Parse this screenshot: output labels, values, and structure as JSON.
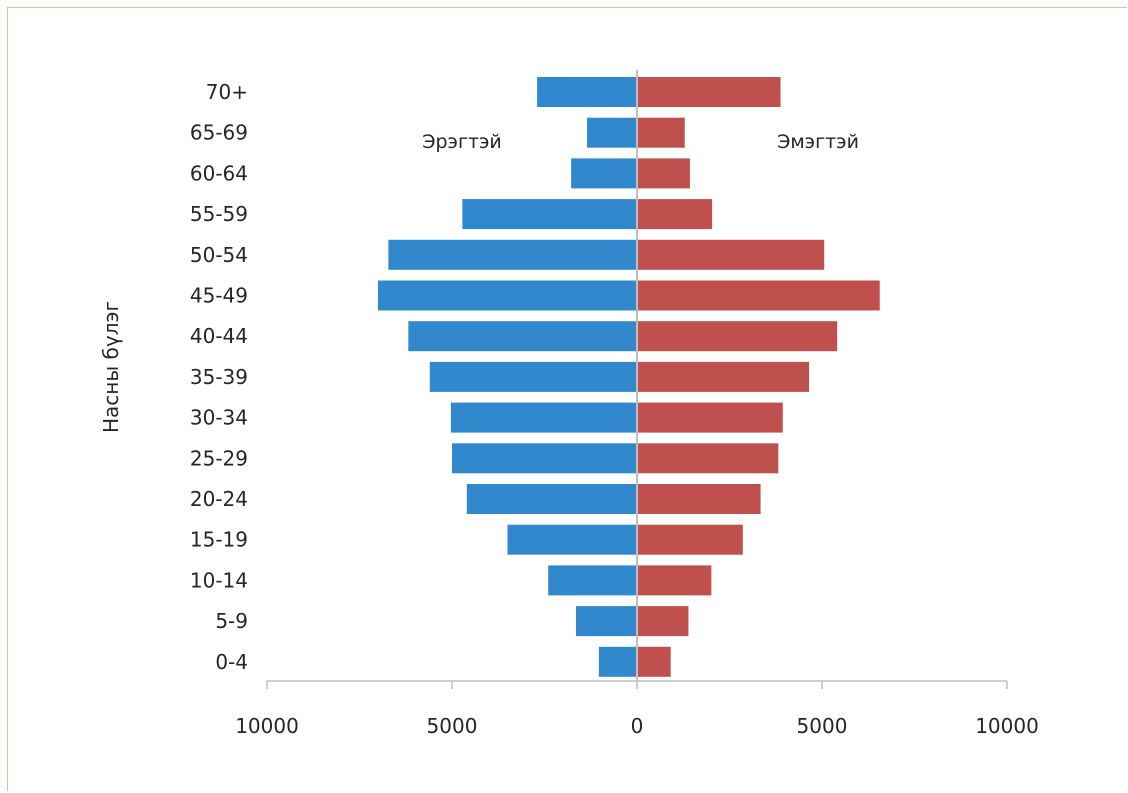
{
  "chart_data": {
    "type": "bar",
    "orientation": "horizontal",
    "layout": "population-pyramid",
    "categories": [
      "70+",
      "65-69",
      "60-64",
      "55-59",
      "50-54",
      "45-49",
      "40-44",
      "35-39",
      "30-34",
      "25-29",
      "20-24",
      "15-19",
      "10-14",
      "5-9",
      "0-4"
    ],
    "series": [
      {
        "name": "Эрэгтэй",
        "side": "left",
        "color": "#3288cc",
        "values": [
          2700,
          1350,
          1780,
          4720,
          6720,
          7000,
          6180,
          5600,
          5030,
          5000,
          4600,
          3500,
          2400,
          1650,
          1030
        ]
      },
      {
        "name": "Эмэгтэй",
        "side": "right",
        "color": "#c0504d",
        "values": [
          3880,
          1290,
          1430,
          2030,
          5060,
          6560,
          5410,
          4650,
          3940,
          3820,
          3340,
          2860,
          2010,
          1390,
          910
        ]
      }
    ],
    "ylabel": "Насны бүлэг",
    "xlabel": "",
    "xlim": [
      -10000,
      10000
    ],
    "xticks": [
      -10000,
      -5000,
      0,
      5000,
      10000
    ],
    "xtick_labels": [
      "10000",
      "5000",
      "0",
      "5000",
      "10000"
    ],
    "grid": false,
    "legend": "inline labels near top"
  },
  "colors": {
    "male": "#3288cc",
    "female": "#c0504d",
    "axis": "#bfbfbf",
    "text": "#262626"
  }
}
